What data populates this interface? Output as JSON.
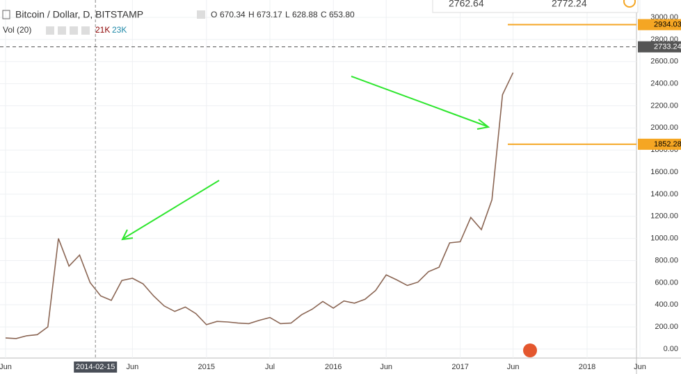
{
  "header": {
    "symbol": "Bitcoin / Dollar, D, BITSTAMP",
    "open_label": "O",
    "open": "670.34",
    "high_label": "H",
    "high": "673.17",
    "low_label": "L",
    "low": "628.88",
    "close_label": "C",
    "close": "653.80",
    "volume_label": "Vol (20)",
    "volume_a": "21K",
    "volume_b": "23K"
  },
  "quote_box": {
    "bid": "2762.64",
    "ask": "2772.24"
  },
  "chart_data": {
    "type": "line",
    "color": "#8a6553",
    "categories": [
      "Jun",
      null,
      null,
      null,
      null,
      null,
      null,
      null,
      null,
      null,
      null,
      null,
      "Jun",
      null,
      null,
      null,
      null,
      null,
      null,
      "2015",
      null,
      null,
      null,
      null,
      null,
      "Jul",
      null,
      null,
      null,
      null,
      null,
      "2016",
      null,
      null,
      null,
      null,
      "Jun",
      null,
      null,
      null,
      null,
      null,
      null,
      "2017",
      null,
      null,
      null,
      null,
      "Jun",
      null,
      null,
      null,
      null,
      null,
      null,
      "2018",
      null,
      null,
      null,
      null,
      "Jun"
    ],
    "values": [
      100,
      95,
      120,
      130,
      200,
      1000,
      750,
      850,
      600,
      480,
      440,
      620,
      640,
      590,
      480,
      390,
      340,
      380,
      320,
      220,
      250,
      245,
      235,
      230,
      260,
      285,
      230,
      235,
      310,
      360,
      430,
      370,
      435,
      415,
      450,
      530,
      670,
      625,
      575,
      605,
      700,
      740,
      960,
      970,
      1190,
      1080,
      1350,
      2300,
      2500,
      null,
      null,
      null,
      null,
      null,
      null,
      null,
      null,
      null,
      null,
      null,
      null
    ],
    "ylim": [
      0,
      3000
    ],
    "yticks": [
      {
        "value": 0,
        "label": "0.00"
      },
      {
        "value": 200,
        "label": "200.00"
      },
      {
        "value": 400,
        "label": "400.00"
      },
      {
        "value": 600,
        "label": "600.00"
      },
      {
        "value": 800,
        "label": "800.00"
      },
      {
        "value": 1000,
        "label": "1000.00"
      },
      {
        "value": 1200,
        "label": "1200.00"
      },
      {
        "value": 1400,
        "label": "1400.00"
      },
      {
        "value": 1600,
        "label": "1600.00"
      },
      {
        "value": 1800,
        "label": "1800.00"
      },
      {
        "value": 2000,
        "label": "2000.00"
      },
      {
        "value": 2200,
        "label": "2200.00"
      },
      {
        "value": 2400,
        "label": "2400.00"
      },
      {
        "value": 2600,
        "label": "2600.00"
      },
      {
        "value": 2800,
        "label": "2800.00"
      },
      {
        "value": 3000,
        "label": "3000.00"
      }
    ],
    "grid": true,
    "crosshair_label": "2014-02-15",
    "price_lines": [
      {
        "value": 2934.03,
        "color": "#f5a623"
      },
      {
        "value": 1852.28,
        "color": "#f5a623"
      },
      {
        "value": 2733.24,
        "color": "#555555"
      }
    ]
  }
}
